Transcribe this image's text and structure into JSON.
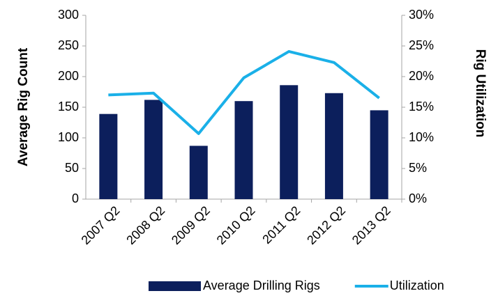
{
  "chart_data": {
    "type": "combo",
    "categories": [
      "2007 Q2",
      "2008 Q2",
      "2009 Q2",
      "2010 Q2",
      "2011 Q2",
      "2012 Q2",
      "2013 Q2"
    ],
    "y_label": "Average Rig Count",
    "y2_label": "Rig Utilization",
    "series": [
      {
        "name": "Average Drilling Rigs",
        "type": "bar",
        "color": "#0c1f5c",
        "values": [
          139,
          162,
          87,
          160,
          186,
          173,
          145
        ]
      },
      {
        "name": "Utilization",
        "type": "line",
        "axis": "y2",
        "color": "#1ab0e8",
        "values": [
          17.0,
          17.3,
          10.7,
          19.8,
          24.1,
          22.3,
          16.5
        ]
      }
    ],
    "ylim": [
      0,
      300
    ],
    "yticks": [
      0,
      50,
      100,
      150,
      200,
      250,
      300
    ],
    "y2lim": [
      0,
      30
    ],
    "y2ticks": [
      {
        "value": 0,
        "label": "0%"
      },
      {
        "value": 5,
        "label": "5%"
      },
      {
        "value": 10,
        "label": "10%"
      },
      {
        "value": 15,
        "label": "15%"
      },
      {
        "value": 20,
        "label": "20%"
      },
      {
        "value": 25,
        "label": "25%"
      },
      {
        "value": 30,
        "label": "30%"
      }
    ],
    "legend": "bottom"
  }
}
